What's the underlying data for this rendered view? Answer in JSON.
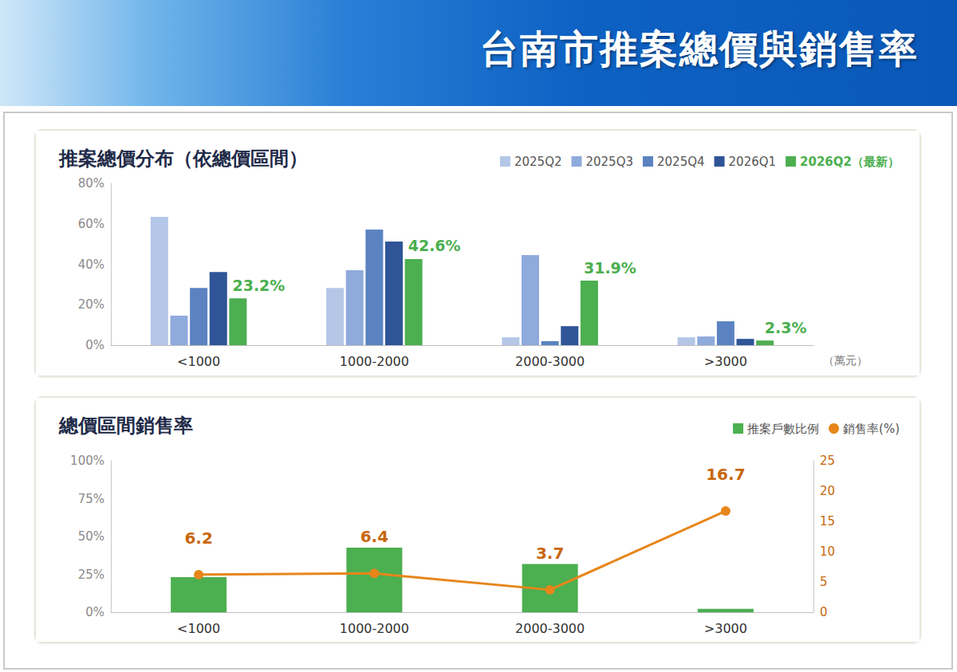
{
  "title": "台南市推案總價與銷售率",
  "chart_data": [
    {
      "type": "bar",
      "title": "推案總價分布（依總價區間）",
      "categories": [
        "<1000",
        "1000-2000",
        "2000-3000",
        ">3000"
      ],
      "xlabel": "（萬元）",
      "series": [
        {
          "name": "2025Q2",
          "color": "#b4c7e7",
          "values": [
            63.4,
            28.3,
            3.9,
            3.9
          ]
        },
        {
          "name": "2025Q3",
          "color": "#8faadc",
          "values": [
            14.6,
            37.0,
            44.5,
            4.3
          ]
        },
        {
          "name": "2025Q4",
          "color": "#5b83c1",
          "values": [
            28.3,
            57.1,
            2.0,
            11.8
          ]
        },
        {
          "name": "2026Q1",
          "color": "#2f5597",
          "values": [
            36.2,
            51.2,
            9.4,
            3.1
          ]
        },
        {
          "name": "2026Q2（最新）",
          "color": "#4caf50",
          "values": [
            23.2,
            42.6,
            31.9,
            2.3
          ],
          "data_labels": true,
          "value_labels": [
            "23.2%",
            "42.6%",
            "31.9%",
            "2.3%"
          ]
        }
      ],
      "ylim": [
        0,
        80
      ],
      "yticks": [
        {
          "value": 0,
          "label": "0%"
        },
        {
          "value": 20,
          "label": "20%"
        },
        {
          "value": 40,
          "label": "40%"
        },
        {
          "value": 60,
          "label": "60%"
        },
        {
          "value": 80,
          "label": "80%"
        }
      ],
      "grid": false,
      "legend": "upper right"
    },
    {
      "type": "bar",
      "title": "總價區間銷售率",
      "categories": [
        "<1000",
        "1000-2000",
        "2000-3000",
        ">3000"
      ],
      "series": [
        {
          "name": "推案戶數比例",
          "type": "bar",
          "color": "#4caf50",
          "values": [
            23.2,
            42.6,
            31.9,
            2.3
          ]
        },
        {
          "name": "銷售率(%)",
          "type": "line",
          "color": "#e6861a",
          "marker": "circle",
          "axis": "y2",
          "data_labels": true,
          "values": [
            6.2,
            6.4,
            3.7,
            16.7
          ]
        }
      ],
      "ylim": [
        0,
        100
      ],
      "yticks": [
        {
          "value": 0,
          "label": "0%"
        },
        {
          "value": 25,
          "label": "25%"
        },
        {
          "value": 50,
          "label": "50%"
        },
        {
          "value": 75,
          "label": "75%"
        },
        {
          "value": 100,
          "label": "100%"
        }
      ],
      "y2lim": [
        0,
        25
      ],
      "y2ticks": [
        0,
        5,
        10,
        15,
        20,
        25
      ],
      "grid": false,
      "legend": "upper right"
    }
  ]
}
